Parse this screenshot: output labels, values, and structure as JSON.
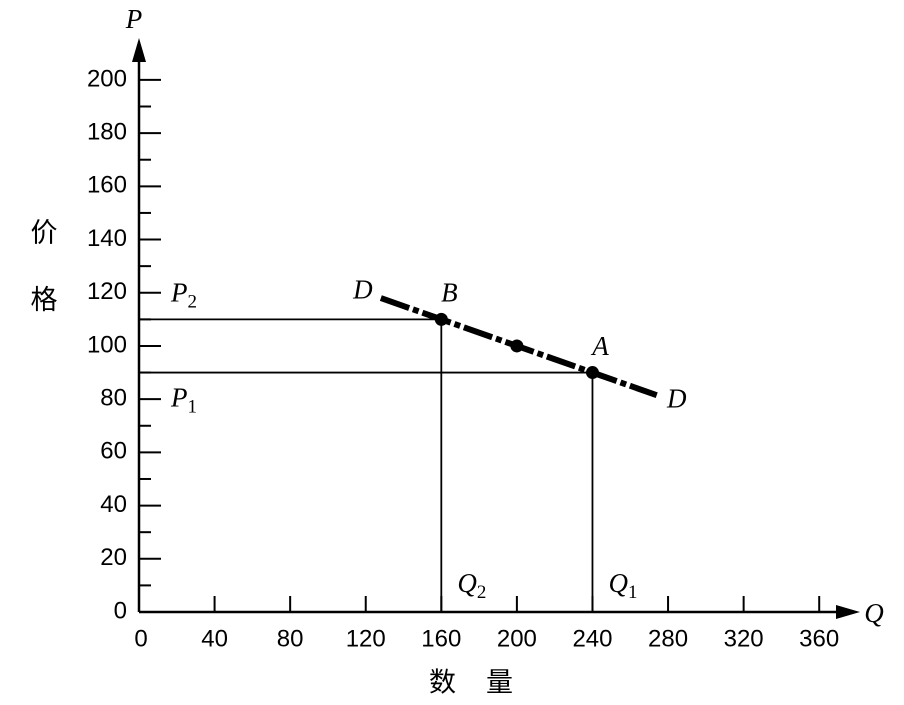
{
  "chart_data": {
    "type": "line",
    "x_label": "数量",
    "y_label": "价格",
    "x_axis_letter": "Q",
    "y_axis_letter": "P",
    "xlim": [
      0,
      380
    ],
    "ylim": [
      0,
      215
    ],
    "xticks": [
      0,
      40,
      80,
      120,
      160,
      200,
      240,
      280,
      320,
      360
    ],
    "yticks": [
      0,
      20,
      40,
      60,
      80,
      100,
      120,
      140,
      160,
      180,
      200
    ],
    "yminor_ticks": [
      10,
      30,
      50,
      70,
      90,
      110,
      130,
      150,
      170,
      190
    ],
    "series": [
      {
        "name": "D",
        "color": "#000000",
        "x": [
          128,
          274
        ],
        "values": [
          118,
          81.5
        ]
      }
    ],
    "points": [
      {
        "label": "B",
        "x": 160,
        "y": 110
      },
      {
        "x": 200,
        "y": 100
      },
      {
        "label": "A",
        "x": 240,
        "y": 90
      }
    ],
    "price_guides": [
      {
        "label": "P",
        "sub": "2",
        "y": 110,
        "x_end": 160
      },
      {
        "label": "P",
        "sub": "1",
        "y": 90,
        "x_end": 240
      }
    ],
    "quantity_guides": [
      {
        "label": "Q",
        "sub": "2",
        "x": 160,
        "y_end": 110
      },
      {
        "label": "Q",
        "sub": "1",
        "x": 240,
        "y_end": 90
      }
    ]
  }
}
